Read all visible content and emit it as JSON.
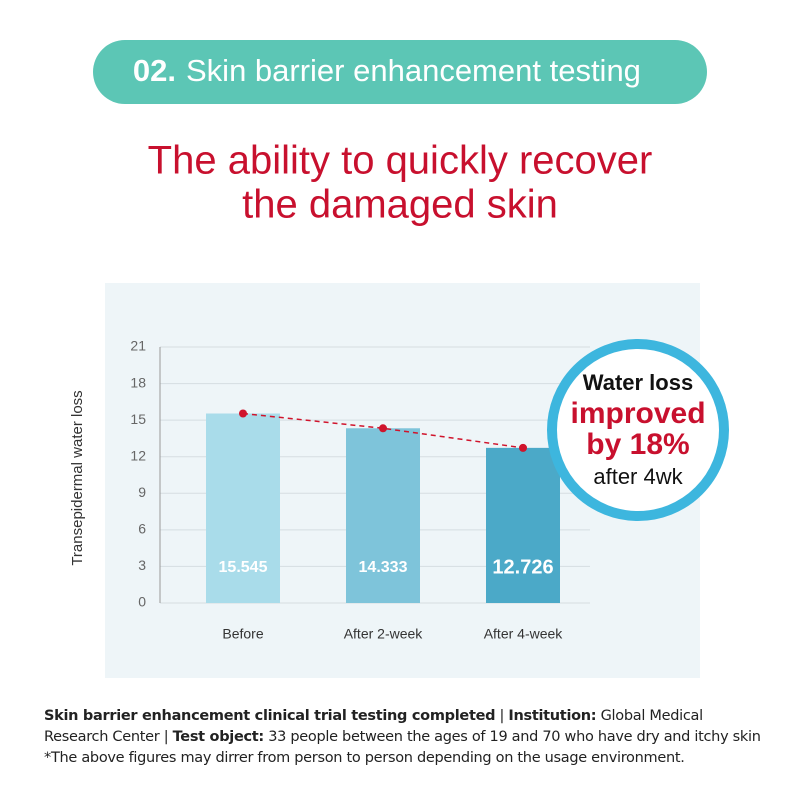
{
  "header": {
    "number": "02.",
    "title": "Skin barrier enhancement testing"
  },
  "headline": [
    "The ability to quickly recover",
    "the damaged skin"
  ],
  "chart_data": {
    "type": "bar",
    "y_label": "Transepidermal water loss",
    "categories": [
      "Before",
      "After 2-week",
      "After 4-week"
    ],
    "values": [
      15.545,
      14.333,
      12.726
    ],
    "colors": [
      "#a9dcea",
      "#7ec4da",
      "#4ba9c8"
    ],
    "ylim": [
      0,
      21
    ],
    "yticks": [
      0,
      3,
      6,
      9,
      12,
      15,
      18,
      21
    ],
    "grid": true,
    "trend_line": true,
    "trend_color": "#d0142c",
    "callout": [
      "Water loss",
      "improved",
      "by 18%",
      "after 4wk"
    ]
  },
  "footer": [
    {
      "text": "Skin barrier enhancement clinical trial testing completed",
      "bold": true
    },
    {
      "text": " | ",
      "bold": false
    },
    {
      "text": "Institution:",
      "bold": true
    },
    {
      "text": " Global Medical Research Center | ",
      "bold": false
    },
    {
      "text": "Test object:",
      "bold": true
    },
    {
      "text": " 33 people between the ages of 19 and 70 who have dry and itchy skin",
      "bold": false
    },
    {
      "text": "*The above figures may dirrer from person to person depending on the usage environment.",
      "bold": false,
      "newline": true
    }
  ]
}
